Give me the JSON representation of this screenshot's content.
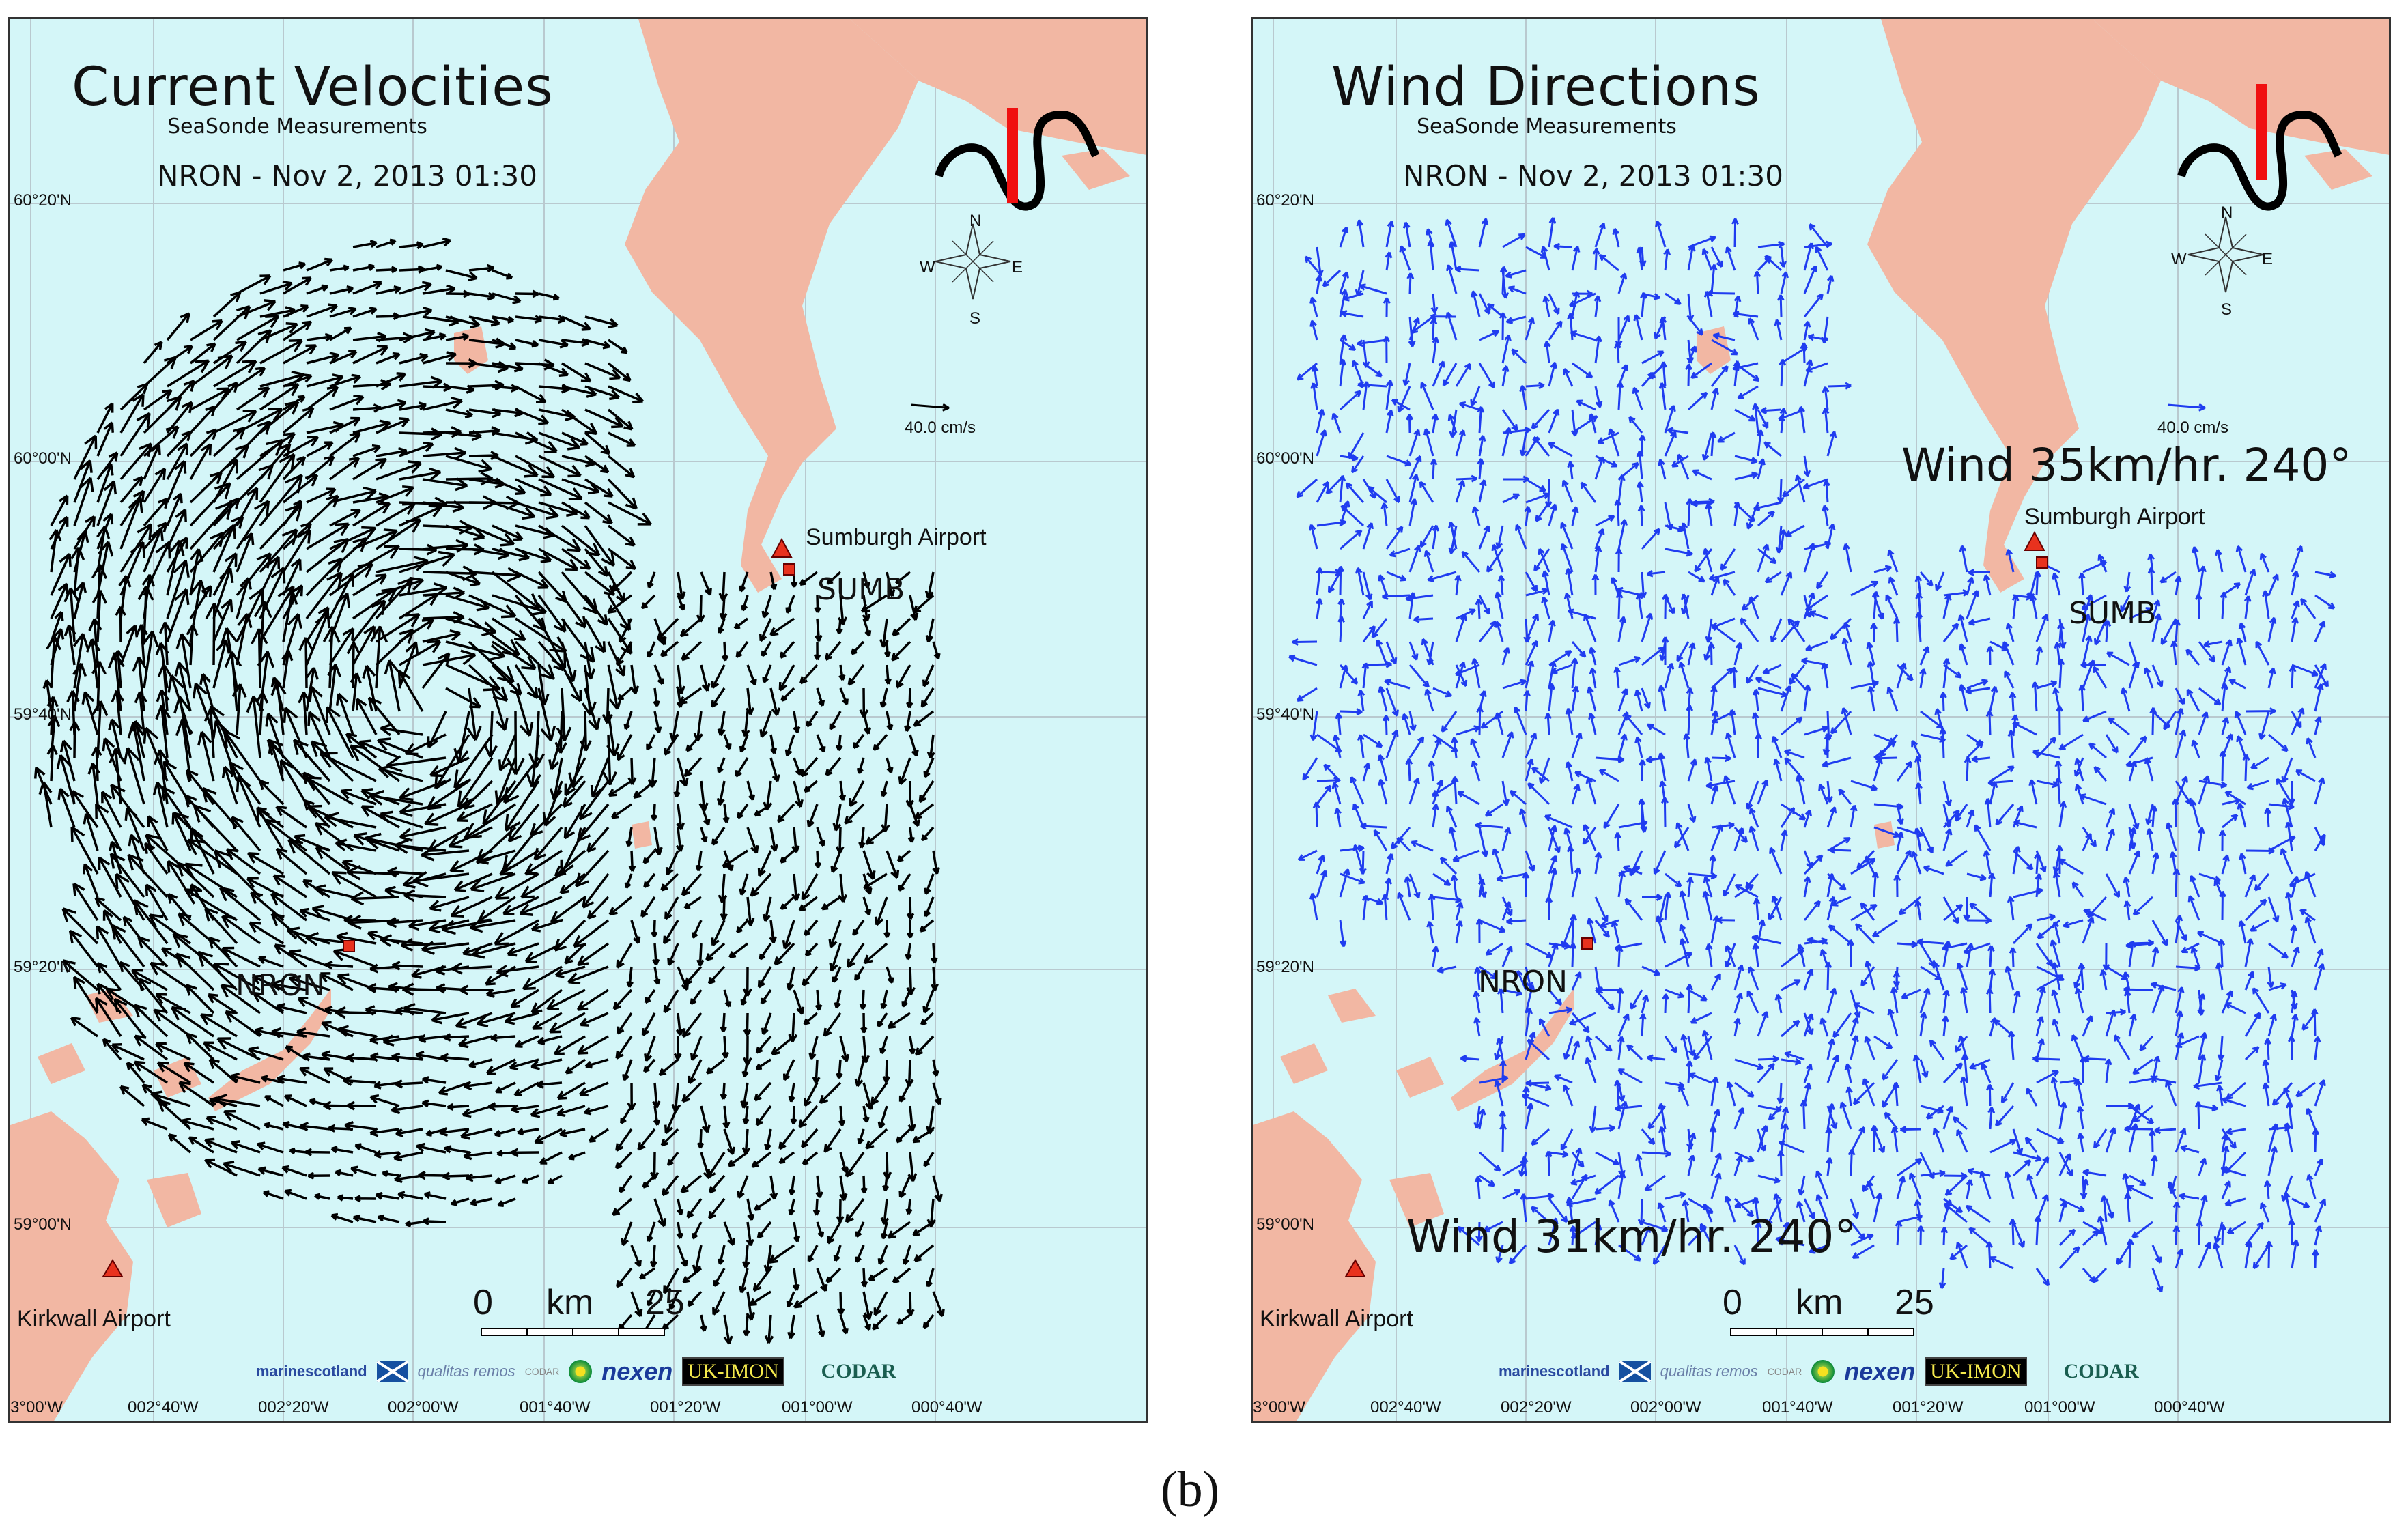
{
  "panels": [
    {
      "title": "Current Velocities",
      "subtitle": "SeaSonde Measurements",
      "dateline": "NRON - Nov 2, 2013 01:30",
      "arrow_color": "#000000",
      "mode": "current",
      "reference": "40.0 cm/s",
      "compass": {
        "n": "N",
        "s": "S",
        "e": "E",
        "w": "W"
      },
      "sites": [
        "NRON",
        "SUMB"
      ],
      "airports": [
        "Sumburgh Airport",
        "Kirkwall Airport"
      ],
      "scale": {
        "start": "0",
        "unit": "km",
        "end": "25"
      },
      "wind_notes": []
    },
    {
      "title": "Wind Directions",
      "subtitle": "SeaSonde Measurements",
      "dateline": "NRON - Nov 2, 2013 01:30",
      "arrow_color": "#1f3cf0",
      "mode": "wind",
      "reference": "40.0 cm/s",
      "compass": {
        "n": "N",
        "s": "S",
        "e": "E",
        "w": "W"
      },
      "sites": [
        "NRON",
        "SUMB"
      ],
      "airports": [
        "Sumburgh Airport",
        "Kirkwall Airport"
      ],
      "scale": {
        "start": "0",
        "unit": "km",
        "end": "25"
      },
      "wind_notes": [
        "Wind 35km/hr. 240°",
        "Wind 31km/hr. 240°"
      ]
    }
  ],
  "latitudes": [
    "60°20'N",
    "60°00'N",
    "59°40'N",
    "59°20'N",
    "59°00'N"
  ],
  "longitudes": [
    "3°00'W",
    "002°40'W",
    "002°20'W",
    "002°00'W",
    "001°40'W",
    "001°20'W",
    "001°00'W",
    "000°40'W"
  ],
  "logos": {
    "marine": "marinescotland",
    "qualitas": "qualitas remos",
    "codar_small": "CODAR",
    "nexen": "nexen",
    "ukimon": "UK-IMON",
    "codar": "CODAR"
  },
  "colors": {
    "sea": "#d4f6f8",
    "land": "#f2b7a3",
    "grid": "#b9c9cf",
    "site_marker": "#e8321e"
  },
  "figure_label": "(b)"
}
